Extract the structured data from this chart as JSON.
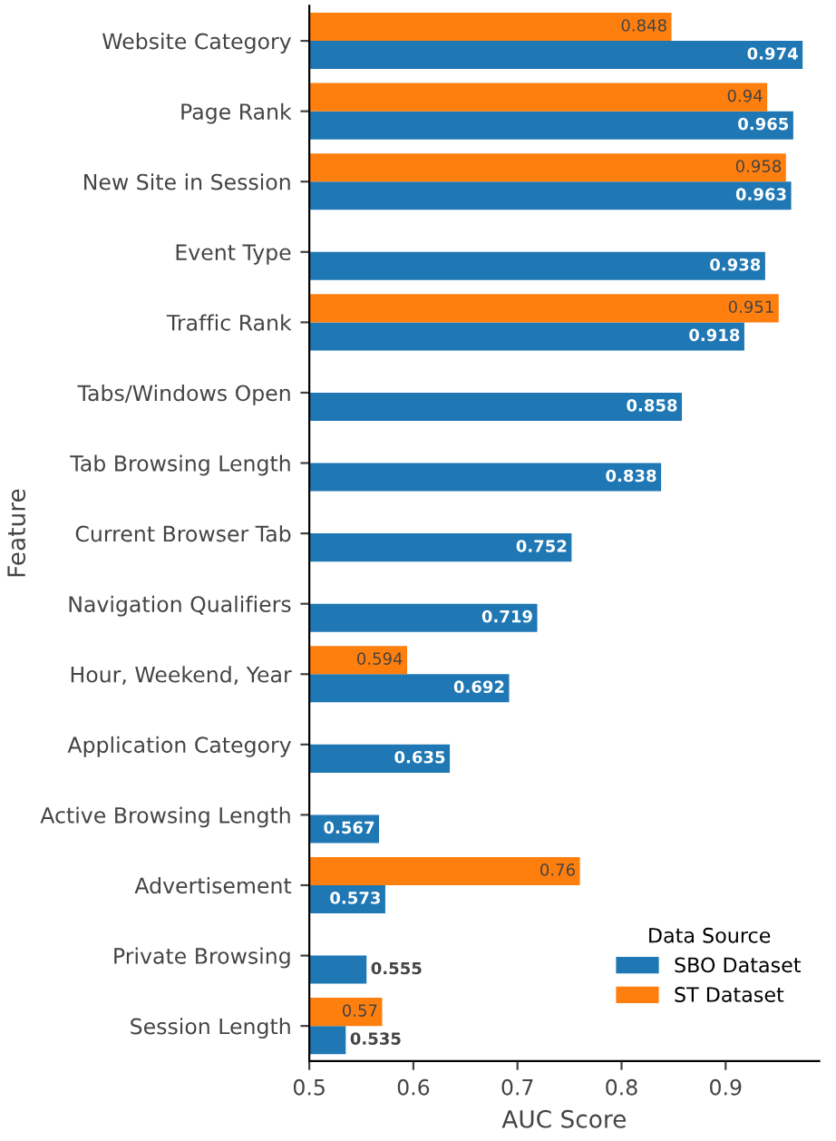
{
  "chart_data": {
    "type": "bar",
    "orientation": "horizontal",
    "xlabel": "AUC Score",
    "ylabel": "Feature",
    "legend_title": "Data Source",
    "categories": [
      "Website Category",
      "Page Rank",
      "New Site in Session",
      "Event Type",
      "Traffic Rank",
      "Tabs/Windows Open",
      "Tab Browsing Length",
      "Current Browser Tab",
      "Navigation Qualifiers",
      "Hour, Weekend, Year",
      "Application Category",
      "Active Browsing Length",
      "Advertisement",
      "Private Browsing",
      "Session Length"
    ],
    "series": [
      {
        "name": "SBO Dataset",
        "color": "#1f77b4",
        "values": [
          0.974,
          0.965,
          0.963,
          0.938,
          0.918,
          0.858,
          0.838,
          0.752,
          0.719,
          0.692,
          0.635,
          0.567,
          0.573,
          0.555,
          0.535
        ]
      },
      {
        "name": "ST Dataset",
        "color": "#ff7f0e",
        "values": [
          0.848,
          0.94,
          0.958,
          null,
          0.951,
          null,
          null,
          null,
          null,
          0.594,
          null,
          null,
          0.76,
          null,
          0.57
        ]
      }
    ],
    "xlim": [
      0.5,
      0.99
    ],
    "xticks": [
      0.5,
      0.6,
      0.7,
      0.8,
      0.9
    ],
    "data_labels": true,
    "grid": false,
    "legend": "bottom right"
  }
}
